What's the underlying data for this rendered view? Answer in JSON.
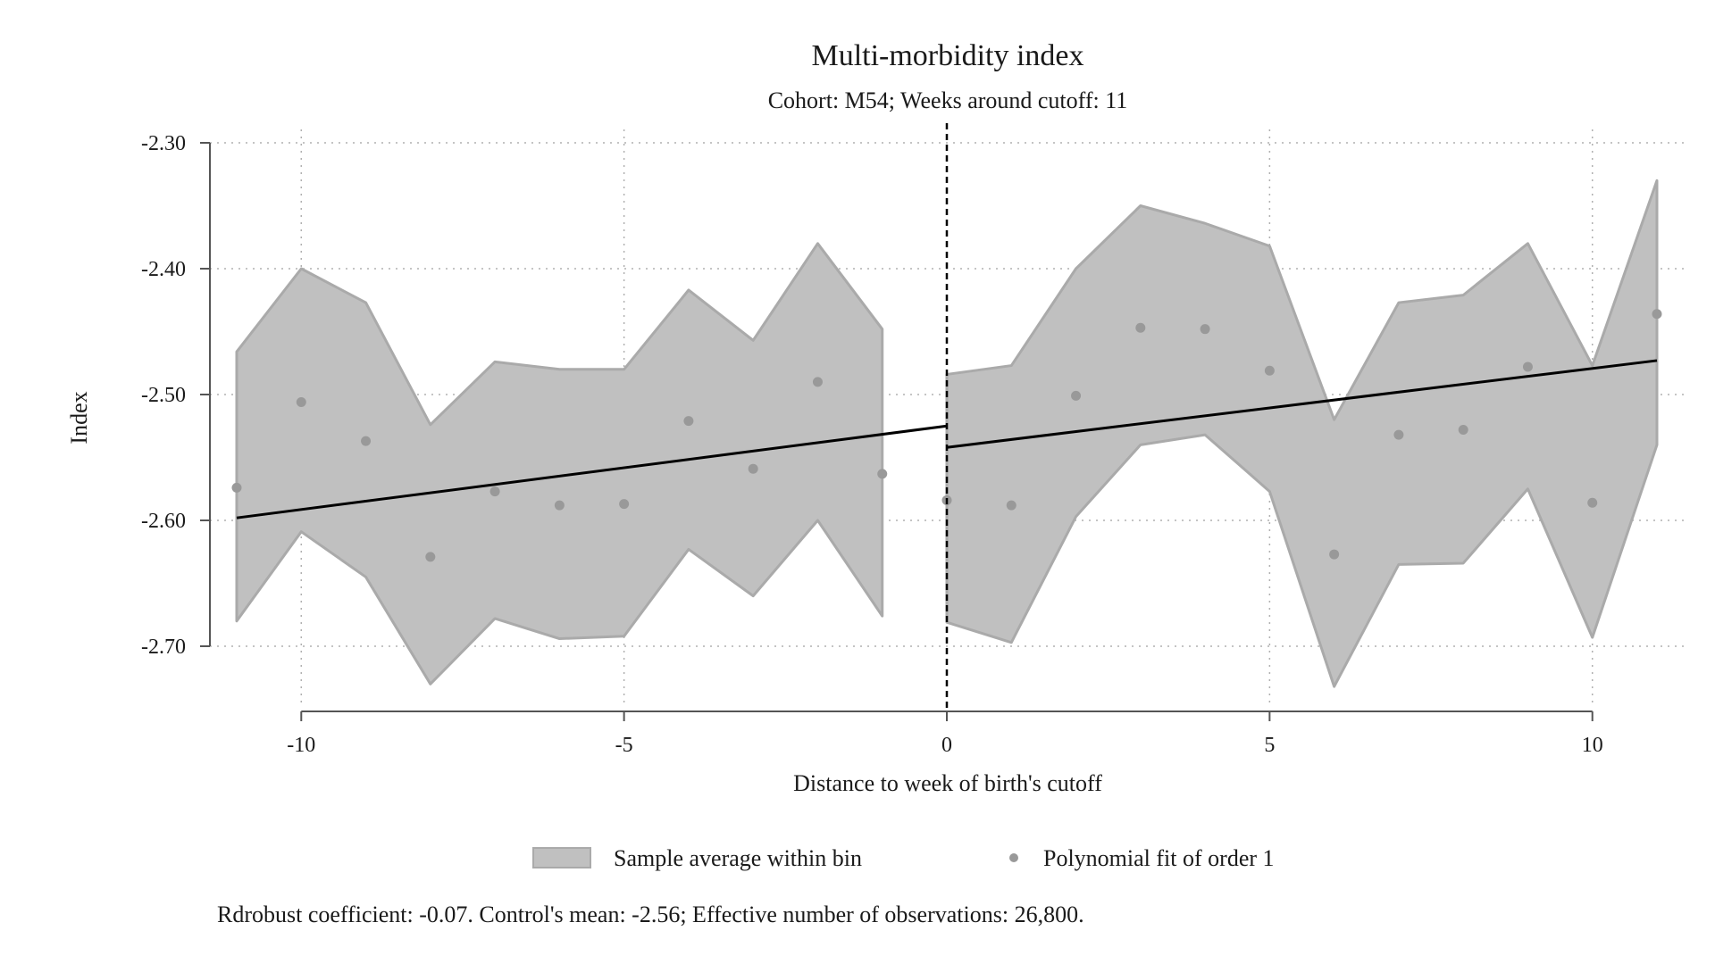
{
  "chart_data": {
    "type": "scatter",
    "title": "Multi-morbidity index",
    "subtitle": "Cohort: M54; Weeks around cutoff: 11",
    "xlabel": "Distance to week of birth's cutoff",
    "ylabel": "Index",
    "xlim": [
      -11,
      11
    ],
    "ylim": [
      -2.75,
      -2.3
    ],
    "x_ticks": [
      -10,
      -5,
      0,
      5,
      10
    ],
    "x_tick_labels": [
      "-10",
      "-5",
      "0",
      "5",
      "10"
    ],
    "y_ticks": [
      -2.3,
      -2.4,
      -2.5,
      -2.6,
      -2.7
    ],
    "y_tick_labels": [
      "-2.30",
      "-2.40",
      "-2.50",
      "-2.60",
      "-2.70"
    ],
    "grid": true,
    "cutoff_x": 0,
    "legend": {
      "position": "bottom",
      "entries": [
        "Sample average within bin",
        "Polynomial fit of order 1"
      ]
    },
    "note": "Rdrobust coefficient: -0.07. Control's mean: -2.56; Effective number of observations: 26,800.",
    "colors": {
      "band": "#c0c0c0",
      "band_edge": "#aaaaaa",
      "points": "#999999",
      "fit": "#000000",
      "grid": "#b0b0b0"
    },
    "band_left": [
      {
        "x": -11,
        "lower": -2.68,
        "upper": -2.466
      },
      {
        "x": -10,
        "lower": -2.609,
        "upper": -2.4
      },
      {
        "x": -9,
        "lower": -2.645,
        "upper": -2.427
      },
      {
        "x": -8,
        "lower": -2.73,
        "upper": -2.524
      },
      {
        "x": -7,
        "lower": -2.678,
        "upper": -2.474
      },
      {
        "x": -6,
        "lower": -2.694,
        "upper": -2.48
      },
      {
        "x": -5,
        "lower": -2.692,
        "upper": -2.48
      },
      {
        "x": -4,
        "lower": -2.623,
        "upper": -2.417
      },
      {
        "x": -3,
        "lower": -2.66,
        "upper": -2.457
      },
      {
        "x": -2,
        "lower": -2.6,
        "upper": -2.38
      },
      {
        "x": -1,
        "lower": -2.676,
        "upper": -2.448
      }
    ],
    "band_right": [
      {
        "x": 0,
        "lower": -2.681,
        "upper": -2.484
      },
      {
        "x": 1,
        "lower": -2.697,
        "upper": -2.477
      },
      {
        "x": 2,
        "lower": -2.597,
        "upper": -2.4
      },
      {
        "x": 3,
        "lower": -2.54,
        "upper": -2.35
      },
      {
        "x": 4,
        "lower": -2.532,
        "upper": -2.364
      },
      {
        "x": 5,
        "lower": -2.577,
        "upper": -2.382
      },
      {
        "x": 6,
        "lower": -2.732,
        "upper": -2.52
      },
      {
        "x": 7,
        "lower": -2.635,
        "upper": -2.427
      },
      {
        "x": 8,
        "lower": -2.634,
        "upper": -2.421
      },
      {
        "x": 9,
        "lower": -2.575,
        "upper": -2.38
      },
      {
        "x": 10,
        "lower": -2.693,
        "upper": -2.477
      },
      {
        "x": 11,
        "lower": -2.54,
        "upper": -2.33
      }
    ],
    "points": [
      {
        "x": -11,
        "y": -2.574
      },
      {
        "x": -10,
        "y": -2.506
      },
      {
        "x": -9,
        "y": -2.537
      },
      {
        "x": -8,
        "y": -2.629
      },
      {
        "x": -7,
        "y": -2.577
      },
      {
        "x": -6,
        "y": -2.588
      },
      {
        "x": -5,
        "y": -2.587
      },
      {
        "x": -4,
        "y": -2.521
      },
      {
        "x": -3,
        "y": -2.559
      },
      {
        "x": -2,
        "y": -2.49
      },
      {
        "x": -1,
        "y": -2.563
      },
      {
        "x": 0,
        "y": -2.584
      },
      {
        "x": 1,
        "y": -2.588
      },
      {
        "x": 2,
        "y": -2.501
      },
      {
        "x": 3,
        "y": -2.447
      },
      {
        "x": 4,
        "y": -2.448
      },
      {
        "x": 5,
        "y": -2.481
      },
      {
        "x": 6,
        "y": -2.627
      },
      {
        "x": 7,
        "y": -2.532
      },
      {
        "x": 8,
        "y": -2.528
      },
      {
        "x": 9,
        "y": -2.478
      },
      {
        "x": 10,
        "y": -2.586
      },
      {
        "x": 11,
        "y": -2.436
      }
    ],
    "fit_left": [
      {
        "x": -11,
        "y": -2.598
      },
      {
        "x": 0,
        "y": -2.525
      }
    ],
    "fit_right": [
      {
        "x": 0,
        "y": -2.542
      },
      {
        "x": 11,
        "y": -2.473
      }
    ]
  }
}
